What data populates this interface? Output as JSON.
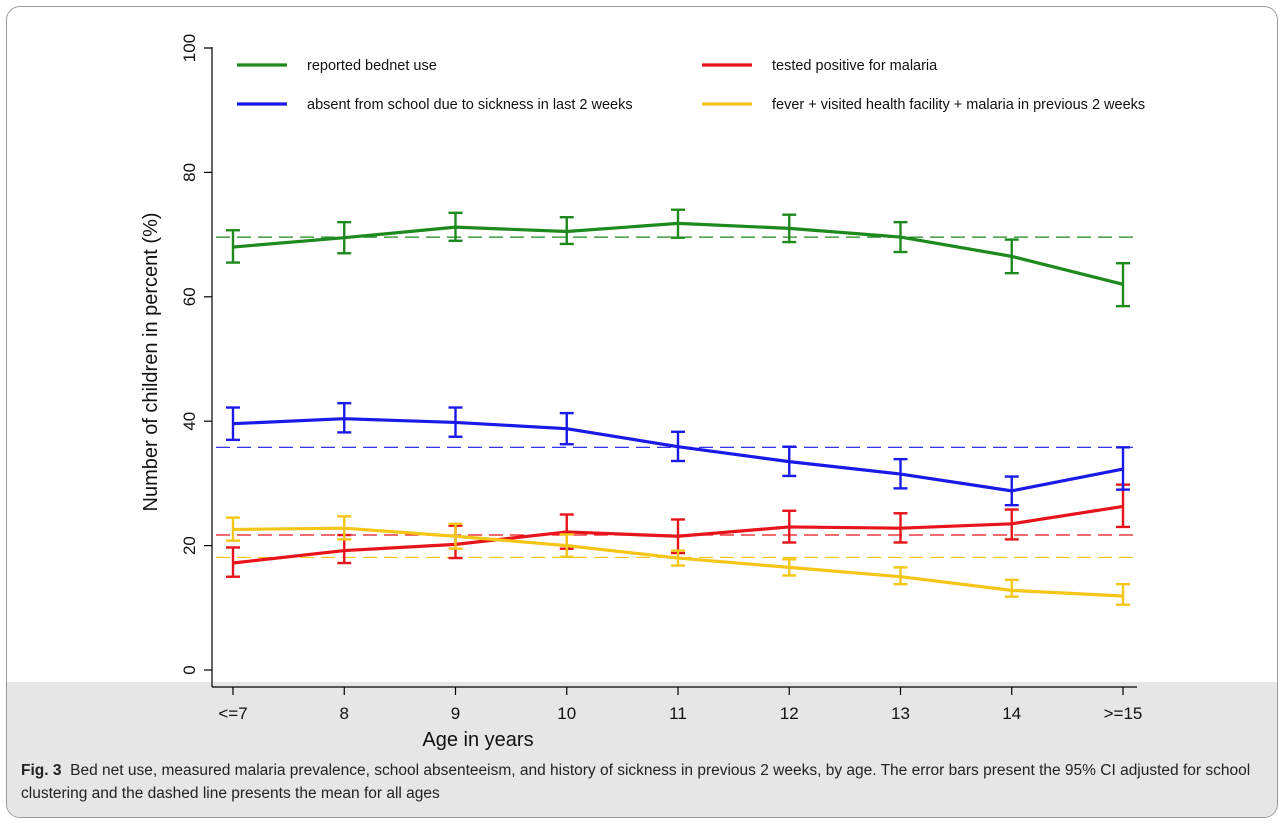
{
  "figure": {
    "label": "Fig. 3",
    "caption": "Bed net use, measured malaria prevalence, school absenteeism, and history of sickness in previous 2 weeks, by age. The error bars present the 95% CI adjusted for school clustering and the dashed line presents the mean for all ages"
  },
  "chart_data": {
    "type": "line",
    "xlabel": "Age in years",
    "ylabel": "Number of children in percent (%)",
    "categories": [
      "<=7",
      "8",
      "9",
      "10",
      "11",
      "12",
      "13",
      "14",
      ">=15"
    ],
    "ylim": [
      0,
      100
    ],
    "yticks": [
      0,
      20,
      40,
      60,
      80,
      100
    ],
    "grid": false,
    "legend_position": "top",
    "series": [
      {
        "name": "reported bednet use",
        "color": "#1e8a1e",
        "values": [
          68,
          69.5,
          71.2,
          70.5,
          71.8,
          71,
          69.6,
          66.5,
          62
        ],
        "ci_low": [
          65.5,
          67,
          69,
          68.5,
          69.5,
          68.8,
          67.2,
          63.8,
          58.5
        ],
        "ci_high": [
          70.7,
          72,
          73.5,
          72.8,
          74,
          73.2,
          72,
          69.2,
          65.4
        ],
        "mean": 69.6
      },
      {
        "name": "tested positive for malaria",
        "color": "#e8141b",
        "values": [
          17.2,
          19.2,
          20.2,
          22.2,
          21.5,
          23,
          22.8,
          23.5,
          26.3
        ],
        "ci_low": [
          15,
          17.2,
          18,
          19.5,
          18.8,
          20.5,
          20.5,
          21,
          23
        ],
        "ci_high": [
          19.7,
          21.7,
          23.2,
          25,
          24.2,
          25.6,
          25.2,
          25.8,
          29.8
        ],
        "mean": 21.7
      },
      {
        "name": "absent from school due to sickness in last 2 weeks",
        "color": "#1a1ae8",
        "values": [
          39.6,
          40.4,
          39.8,
          38.8,
          35.9,
          33.5,
          31.5,
          28.8,
          32.3
        ],
        "ci_low": [
          37,
          38.2,
          37.5,
          36.3,
          33.6,
          31.2,
          29.2,
          26.5,
          29
        ],
        "ci_high": [
          42.2,
          42.9,
          42.2,
          41.3,
          38.3,
          35.9,
          33.9,
          31.1,
          35.8
        ],
        "mean": 35.8
      },
      {
        "name": "fever + visited health facility + malaria in previous 2 weeks",
        "color": "#f5c518",
        "values": [
          22.6,
          22.8,
          21.5,
          20,
          18,
          16.5,
          15,
          12.8,
          11.9
        ],
        "ci_low": [
          20.8,
          21,
          19.5,
          18.2,
          16.8,
          15.2,
          13.8,
          11.8,
          10.5
        ],
        "ci_high": [
          24.5,
          24.7,
          23.5,
          21.8,
          19.2,
          17.8,
          16.5,
          14.5,
          13.8
        ],
        "mean": 18.1
      }
    ]
  }
}
